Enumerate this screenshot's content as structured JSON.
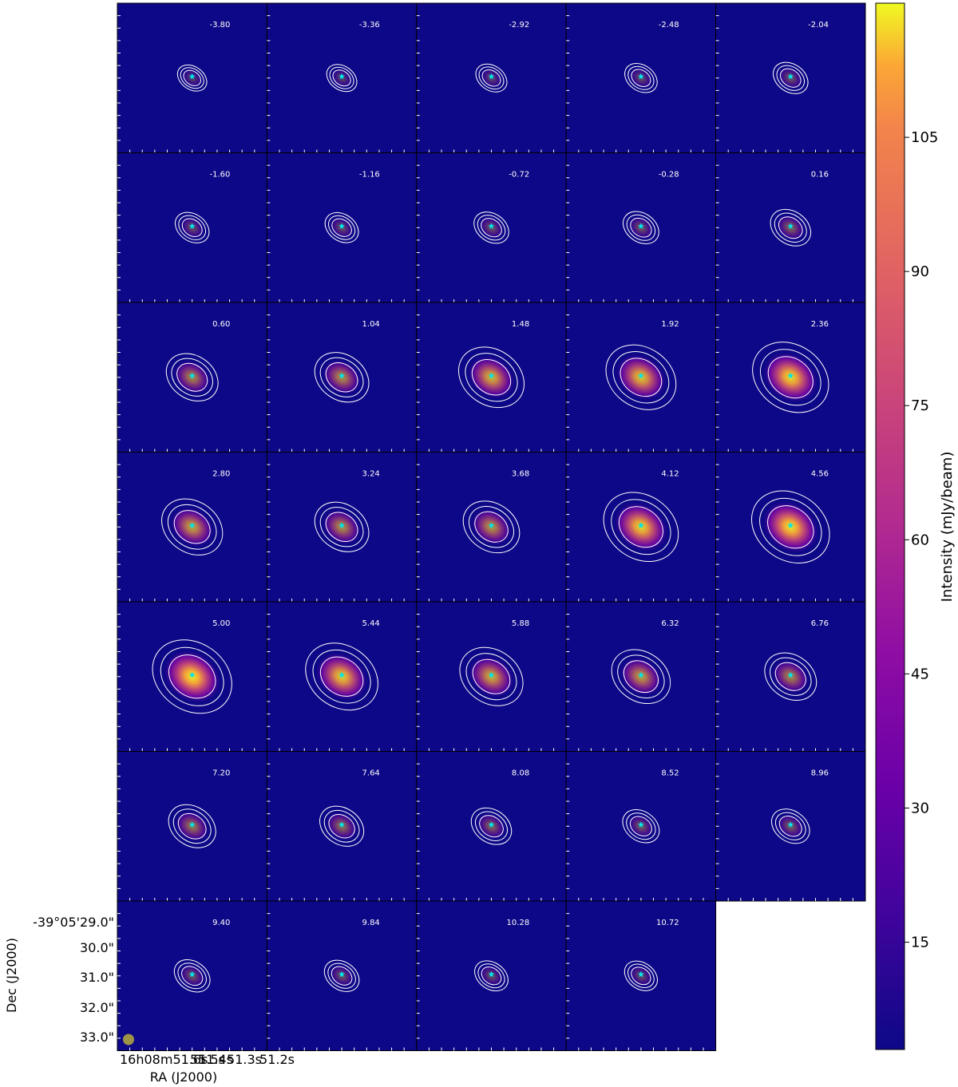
{
  "chart_data": {
    "type": "channel_map",
    "panel_grid": {
      "rows": 7,
      "cols": 5,
      "panel_count": 34
    },
    "velocity_labels": [
      "-3.80",
      "-3.36",
      "-2.92",
      "-2.48",
      "-2.04",
      "-1.60",
      "-1.16",
      "-0.72",
      "-0.28",
      "0.16",
      "0.60",
      "1.04",
      "1.48",
      "1.92",
      "2.36",
      "2.80",
      "3.24",
      "3.68",
      "4.12",
      "4.56",
      "5.00",
      "5.44",
      "5.88",
      "6.32",
      "6.76",
      "7.20",
      "7.64",
      "8.08",
      "8.52",
      "8.96",
      "9.40",
      "9.84",
      "10.28",
      "10.72"
    ],
    "peak_intensity": [
      6,
      8,
      10,
      13,
      18,
      16,
      15,
      18,
      20,
      30,
      55,
      60,
      85,
      95,
      108,
      75,
      60,
      65,
      105,
      112,
      115,
      100,
      80,
      70,
      55,
      45,
      38,
      30,
      22,
      25,
      20,
      18,
      15,
      14
    ],
    "xlabel": "RA (J2000)",
    "ylabel": "Dec (J2000)",
    "x_ticks": [
      "16h08m51.6s",
      "51.5s",
      "51.4s",
      "51.3s",
      "51.2s"
    ],
    "y_ticks": [
      "-39°05'29.0\"",
      "30.0\"",
      "31.0\"",
      "32.0\"",
      "33.0\""
    ],
    "colorbar": {
      "label": "Intensity (mJy/beam)",
      "ticks": [
        15,
        30,
        45,
        60,
        75,
        90,
        105
      ],
      "range": [
        3,
        120
      ],
      "colormap": "plasma"
    },
    "marker_color": "#00e5ee",
    "contour_color": "#ffffff",
    "background_color": "#0d0887",
    "beam_color": "#9d9447"
  }
}
